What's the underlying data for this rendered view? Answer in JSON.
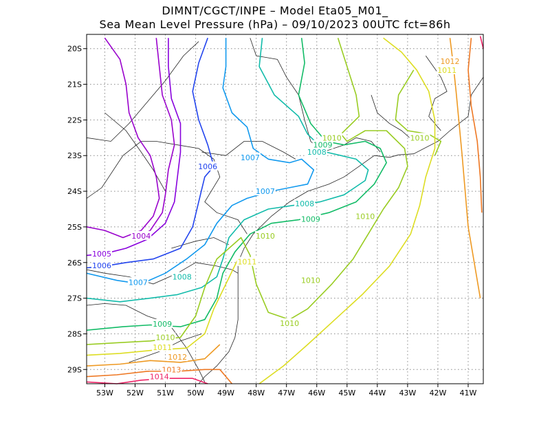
{
  "title_line1": "DIMNT/CGCT/INPE –  Model Eta05_M01_",
  "title_line2": "Sea Mean Level Pressure (hPa) – 09/10/2023 00UTC fct=86h",
  "lat_labels": [
    "20S",
    "21S",
    "22S",
    "23S",
    "24S",
    "25S",
    "26S",
    "27S",
    "28S",
    "29S"
  ],
  "lon_labels": [
    "53W",
    "52W",
    "51W",
    "50W",
    "49W",
    "48W",
    "47W",
    "46W",
    "45W",
    "44W",
    "43W",
    "42W",
    "41W"
  ],
  "map_extent": {
    "lon_min": -53.6,
    "lon_max": -40.5,
    "lat_min": -29.4,
    "lat_max": -19.6
  },
  "isobars": [
    {
      "value": "1004",
      "color": "#9900cc"
    },
    {
      "value": "1005",
      "color": "#8800dd"
    },
    {
      "value": "1006",
      "color": "#2244ee"
    },
    {
      "value": "1007",
      "color": "#1199ee"
    },
    {
      "value": "1008",
      "color": "#11bbaa"
    },
    {
      "value": "1009",
      "color": "#11bb66"
    },
    {
      "value": "1010",
      "color": "#99cc22"
    },
    {
      "value": "1011",
      "color": "#dddd22"
    },
    {
      "value": "1012",
      "color": "#ee9922"
    },
    {
      "value": "1013",
      "color": "#ee7722"
    },
    {
      "value": "1014",
      "color": "#ee2266"
    }
  ],
  "labels": [
    {
      "text": "1004",
      "lon": -51.8,
      "lat": -25.25,
      "color": "#9900cc"
    },
    {
      "text": "1005",
      "lon": -53.1,
      "lat": -25.75,
      "color": "#8800dd"
    },
    {
      "text": "1006",
      "lon": -53.1,
      "lat": -26.08,
      "color": "#2244ee"
    },
    {
      "text": "1006",
      "lon": -49.6,
      "lat": -23.3,
      "color": "#2244ee"
    },
    {
      "text": "1007",
      "lon": -51.9,
      "lat": -26.55,
      "color": "#1199ee"
    },
    {
      "text": "1007",
      "lon": -48.2,
      "lat": -23.05,
      "color": "#1199ee"
    },
    {
      "text": "1007",
      "lon": -47.7,
      "lat": -24.0,
      "color": "#1199ee"
    },
    {
      "text": "1008",
      "lon": -50.45,
      "lat": -26.4,
      "color": "#11bbaa"
    },
    {
      "text": "1008",
      "lon": -46.4,
      "lat": -24.35,
      "color": "#11bbaa"
    },
    {
      "text": "1008",
      "lon": -46.0,
      "lat": -22.9,
      "color": "#11bbaa"
    },
    {
      "text": "1009",
      "lon": -46.2,
      "lat": -24.78,
      "color": "#11bb66"
    },
    {
      "text": "1009",
      "lon": -45.8,
      "lat": -22.7,
      "color": "#11bb66"
    },
    {
      "text": "1009",
      "lon": -51.1,
      "lat": -27.72,
      "color": "#11bb66"
    },
    {
      "text": "1010",
      "lon": -51.0,
      "lat": -28.1,
      "color": "#99cc22"
    },
    {
      "text": "1010",
      "lon": -47.7,
      "lat": -25.25,
      "color": "#99cc22"
    },
    {
      "text": "1010",
      "lon": -45.5,
      "lat": -22.5,
      "color": "#99cc22"
    },
    {
      "text": "1010",
      "lon": -44.4,
      "lat": -24.7,
      "color": "#99cc22"
    },
    {
      "text": "1010",
      "lon": -42.6,
      "lat": -22.5,
      "color": "#99cc22"
    },
    {
      "text": "1010",
      "lon": -46.2,
      "lat": -26.5,
      "color": "#99cc22"
    },
    {
      "text": "1010",
      "lon": -46.9,
      "lat": -27.7,
      "color": "#99cc22"
    },
    {
      "text": "1011",
      "lon": -48.3,
      "lat": -25.98,
      "color": "#dddd22"
    },
    {
      "text": "1011",
      "lon": -51.1,
      "lat": -28.38,
      "color": "#dddd22"
    },
    {
      "text": "1011",
      "lon": -41.7,
      "lat": -20.6,
      "color": "#dddd22"
    },
    {
      "text": "1012",
      "lon": -50.6,
      "lat": -28.65,
      "color": "#ee9922"
    },
    {
      "text": "1012",
      "lon": -41.6,
      "lat": -20.35,
      "color": "#ee9922"
    },
    {
      "text": "1013",
      "lon": -50.8,
      "lat": -29.0,
      "color": "#ee7722"
    },
    {
      "text": "1014",
      "lon": -51.2,
      "lat": -29.2,
      "color": "#ee2266"
    }
  ]
}
